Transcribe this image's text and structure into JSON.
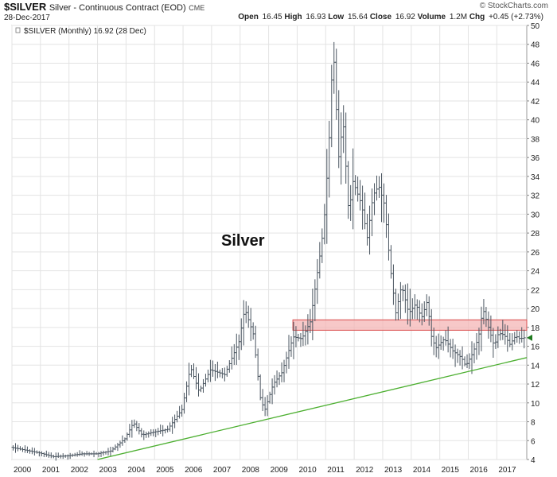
{
  "header": {
    "symbol": "$SILVER",
    "description": "Silver - Continuous Contract (EOD)",
    "exchange": "CME",
    "date": "28-Dec-2017",
    "brand": "© StockCharts.com",
    "ohlc": {
      "open_label": "Open",
      "open": "16.45",
      "high_label": "High",
      "high": "16.93",
      "low_label": "Low",
      "low": "15.64",
      "close_label": "Close",
      "close": "16.92",
      "volume_label": "Volume",
      "volume": "1.2M",
      "chg_label": "Chg",
      "chg": "+0.45 (+2.73%)"
    }
  },
  "legend_text": "$SILVER (Monthly) 16.92 (28 Dec)",
  "annotation_text": "Silver",
  "colors": {
    "bars": "#4a5560",
    "trendline": "#4caf30",
    "zone_fill": "#f4b6b6",
    "zone_stroke": "#d94c4c",
    "grid": "#e3e3e3",
    "last_price_marker": "#1f7a1f"
  },
  "chart_data": {
    "type": "line",
    "x_axis": {
      "range": [
        2000.0,
        2018.05
      ],
      "tick_labels": [
        "2000",
        "2001",
        "2002",
        "2003",
        "2004",
        "2005",
        "2006",
        "2007",
        "2008",
        "2009",
        "2010",
        "2011",
        "2012",
        "2013",
        "2014",
        "2015",
        "2016",
        "2017"
      ]
    },
    "y_axis": {
      "range": [
        4,
        50
      ],
      "tick_values": [
        4,
        6,
        8,
        10,
        12,
        14,
        16,
        18,
        20,
        22,
        24,
        26,
        28,
        30,
        32,
        34,
        36,
        38,
        40,
        42,
        44,
        46,
        48,
        50
      ],
      "position": "right"
    },
    "price_anchors": [
      [
        2000.0,
        5.3
      ],
      [
        2000.5,
        5.0
      ],
      [
        2001.0,
        4.7
      ],
      [
        2001.5,
        4.3
      ],
      [
        2002.0,
        4.4
      ],
      [
        2002.5,
        4.6
      ],
      [
        2003.0,
        4.6
      ],
      [
        2003.5,
        4.9
      ],
      [
        2004.0,
        6.2
      ],
      [
        2004.3,
        7.9
      ],
      [
        2004.6,
        6.6
      ],
      [
        2005.0,
        6.9
      ],
      [
        2005.5,
        7.2
      ],
      [
        2006.0,
        9.3
      ],
      [
        2006.3,
        13.8
      ],
      [
        2006.6,
        11.2
      ],
      [
        2007.0,
        13.5
      ],
      [
        2007.5,
        13.0
      ],
      [
        2008.0,
        16.5
      ],
      [
        2008.2,
        20.0
      ],
      [
        2008.5,
        17.3
      ],
      [
        2008.75,
        10.5
      ],
      [
        2008.9,
        9.2
      ],
      [
        2009.2,
        12.0
      ],
      [
        2009.5,
        13.2
      ],
      [
        2009.9,
        17.0
      ],
      [
        2010.2,
        16.8
      ],
      [
        2010.5,
        18.6
      ],
      [
        2010.9,
        27.0
      ],
      [
        2011.0,
        30.0
      ],
      [
        2011.15,
        37.0
      ],
      [
        2011.3,
        48.0
      ],
      [
        2011.5,
        36.0
      ],
      [
        2011.65,
        40.0
      ],
      [
        2011.85,
        30.0
      ],
      [
        2012.0,
        33.5
      ],
      [
        2012.3,
        31.0
      ],
      [
        2012.5,
        27.5
      ],
      [
        2012.7,
        32.0
      ],
      [
        2012.9,
        33.0
      ],
      [
        2013.1,
        31.0
      ],
      [
        2013.3,
        24.5
      ],
      [
        2013.5,
        19.5
      ],
      [
        2013.7,
        22.5
      ],
      [
        2013.95,
        19.5
      ],
      [
        2014.2,
        20.5
      ],
      [
        2014.4,
        19.0
      ],
      [
        2014.6,
        20.8
      ],
      [
        2014.75,
        17.0
      ],
      [
        2014.9,
        15.8
      ],
      [
        2015.2,
        16.8
      ],
      [
        2015.5,
        15.5
      ],
      [
        2015.8,
        14.8
      ],
      [
        2015.95,
        13.9
      ],
      [
        2016.2,
        15.3
      ],
      [
        2016.4,
        17.0
      ],
      [
        2016.55,
        20.0
      ],
      [
        2016.75,
        18.0
      ],
      [
        2016.95,
        16.0
      ],
      [
        2017.1,
        17.4
      ],
      [
        2017.3,
        17.2
      ],
      [
        2017.5,
        16.2
      ],
      [
        2017.7,
        17.1
      ],
      [
        2017.85,
        16.8
      ],
      [
        2017.99,
        16.9
      ]
    ],
    "zone": {
      "x_from": 2009.85,
      "x_to": 2018.05,
      "y_low": 17.7,
      "y_high": 18.8
    },
    "trendline": {
      "from": [
        2003.0,
        4.0
      ],
      "to": [
        2018.05,
        14.8
      ]
    }
  }
}
